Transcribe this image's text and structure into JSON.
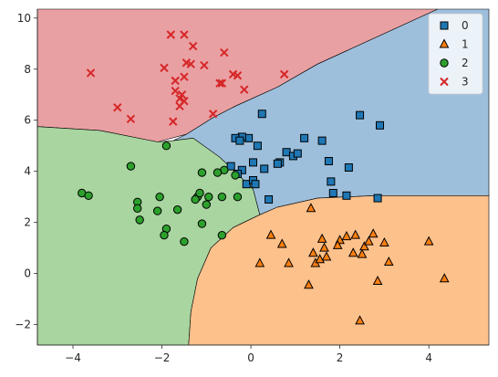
{
  "chart_data": {
    "type": "scatter",
    "subtype": "decision-regions",
    "xlim": [
      -4.8,
      5.35
    ],
    "ylim": [
      -2.8,
      10.35
    ],
    "xticks": [
      -4,
      -2,
      0,
      2,
      4
    ],
    "yticks": [
      -2,
      0,
      2,
      4,
      6,
      8,
      10
    ],
    "xtick_labels": [
      "−4",
      "−2",
      "0",
      "2",
      "4"
    ],
    "ytick_labels": [
      "−2",
      "0",
      "2",
      "4",
      "6",
      "8",
      "10"
    ],
    "grid": false,
    "legend_position": "top-right",
    "regions": [
      {
        "class": "3",
        "color": "#e9a0a3",
        "polygon": [
          [
            -4.8,
            10.35
          ],
          [
            4.2,
            10.35
          ],
          [
            1.5,
            8.2
          ],
          [
            0.6,
            7.3
          ],
          [
            -0.35,
            6.55
          ],
          [
            -0.85,
            6.1
          ],
          [
            -1.45,
            5.45
          ],
          [
            -2.1,
            5.15
          ],
          [
            -3.4,
            5.6
          ],
          [
            -4.8,
            5.75
          ]
        ]
      },
      {
        "class": "0",
        "color": "#9dbfdc",
        "polygon": [
          [
            4.2,
            10.35
          ],
          [
            5.35,
            10.35
          ],
          [
            5.35,
            3.05
          ],
          [
            2.8,
            3.05
          ],
          [
            1.5,
            2.95
          ],
          [
            0.6,
            2.6
          ],
          [
            0.2,
            2.3
          ],
          [
            0.05,
            3.3
          ],
          [
            -0.4,
            4.05
          ],
          [
            -0.7,
            4.55
          ],
          [
            -1.3,
            5.3
          ],
          [
            -1.75,
            5.2
          ],
          [
            -1.45,
            5.45
          ],
          [
            -0.85,
            6.1
          ],
          [
            -0.35,
            6.55
          ],
          [
            0.6,
            7.3
          ],
          [
            1.5,
            8.2
          ]
        ]
      },
      {
        "class": "2",
        "color": "#a9d5a0",
        "polygon": [
          [
            -4.8,
            5.75
          ],
          [
            -3.4,
            5.6
          ],
          [
            -2.1,
            5.15
          ],
          [
            -1.75,
            5.2
          ],
          [
            -1.3,
            5.3
          ],
          [
            -0.7,
            4.55
          ],
          [
            -0.4,
            4.05
          ],
          [
            0.05,
            3.3
          ],
          [
            0.2,
            2.3
          ],
          [
            -0.4,
            1.8
          ],
          [
            -0.9,
            1.0
          ],
          [
            -1.2,
            -0.2
          ],
          [
            -1.35,
            -1.5
          ],
          [
            -1.4,
            -2.8
          ],
          [
            -4.8,
            -2.8
          ]
        ]
      },
      {
        "class": "1",
        "color": "#fdc18c",
        "polygon": [
          [
            0.2,
            2.3
          ],
          [
            0.6,
            2.6
          ],
          [
            1.5,
            2.95
          ],
          [
            2.8,
            3.05
          ],
          [
            5.35,
            3.05
          ],
          [
            5.35,
            -2.8
          ],
          [
            -1.4,
            -2.8
          ],
          [
            -1.35,
            -1.5
          ],
          [
            -1.2,
            -0.2
          ],
          [
            -0.9,
            1.0
          ],
          [
            -0.4,
            1.8
          ]
        ]
      }
    ],
    "series": [
      {
        "name": "0",
        "marker": "square",
        "color": "#1f77b4",
        "points": [
          [
            -0.05,
            5.3
          ],
          [
            -0.2,
            5.35
          ],
          [
            -0.35,
            5.3
          ],
          [
            -0.25,
            5.2
          ],
          [
            0.25,
            6.25
          ],
          [
            0.15,
            5.0
          ],
          [
            0.8,
            4.75
          ],
          [
            0.95,
            4.6
          ],
          [
            1.05,
            4.7
          ],
          [
            1.2,
            5.3
          ],
          [
            1.6,
            5.2
          ],
          [
            1.75,
            4.4
          ],
          [
            2.45,
            6.2
          ],
          [
            2.9,
            5.8
          ],
          [
            2.2,
            4.15
          ],
          [
            0.05,
            4.35
          ],
          [
            -0.2,
            4.05
          ],
          [
            -0.45,
            4.2
          ],
          [
            -0.3,
            3.9
          ],
          [
            -0.1,
            3.5
          ],
          [
            0.05,
            3.65
          ],
          [
            0.1,
            3.5
          ],
          [
            0.65,
            4.35
          ],
          [
            0.4,
            2.9
          ],
          [
            1.8,
            3.6
          ],
          [
            1.85,
            3.15
          ],
          [
            2.15,
            3.05
          ],
          [
            2.85,
            2.95
          ],
          [
            0.6,
            4.3
          ],
          [
            0.3,
            4.1
          ]
        ],
        "sizes": []
      },
      {
        "name": "1",
        "marker": "triangle",
        "color": "#ff7f0e",
        "points": [
          [
            1.35,
            2.55
          ],
          [
            0.45,
            1.5
          ],
          [
            0.7,
            1.15
          ],
          [
            0.2,
            0.4
          ],
          [
            0.85,
            0.4
          ],
          [
            1.3,
            -0.45
          ],
          [
            1.4,
            0.8
          ],
          [
            1.45,
            0.4
          ],
          [
            1.6,
            1.35
          ],
          [
            1.65,
            1.0
          ],
          [
            1.7,
            0.65
          ],
          [
            2.0,
            1.3
          ],
          [
            2.15,
            1.45
          ],
          [
            2.35,
            1.5
          ],
          [
            2.3,
            0.8
          ],
          [
            2.5,
            0.75
          ],
          [
            2.55,
            1.05
          ],
          [
            2.65,
            1.25
          ],
          [
            2.75,
            1.55
          ],
          [
            2.85,
            -0.3
          ],
          [
            3.0,
            1.2
          ],
          [
            3.1,
            0.45
          ],
          [
            4.0,
            1.25
          ],
          [
            4.35,
            -0.2
          ],
          [
            2.45,
            -1.85
          ],
          [
            1.55,
            0.55
          ],
          [
            1.95,
            1.1
          ]
        ]
      },
      {
        "name": "2",
        "marker": "circle",
        "color": "#2ca02c",
        "points": [
          [
            -1.9,
            5.0
          ],
          [
            -2.7,
            4.2
          ],
          [
            -0.6,
            4.05
          ],
          [
            -0.75,
            3.95
          ],
          [
            -1.1,
            3.95
          ],
          [
            -0.35,
            3.85
          ],
          [
            -1.2,
            3.0
          ],
          [
            -1.25,
            2.9
          ],
          [
            -0.3,
            3.0
          ],
          [
            -0.65,
            3.0
          ],
          [
            -1.15,
            3.15
          ],
          [
            -1.0,
            2.7
          ],
          [
            -2.05,
            3.0
          ],
          [
            -2.55,
            2.8
          ],
          [
            -2.55,
            2.55
          ],
          [
            -2.1,
            2.45
          ],
          [
            -1.65,
            2.5
          ],
          [
            -3.8,
            3.15
          ],
          [
            -3.65,
            3.05
          ],
          [
            -2.5,
            2.1
          ],
          [
            -1.9,
            1.75
          ],
          [
            -1.95,
            1.5
          ],
          [
            -1.5,
            1.25
          ],
          [
            -1.1,
            1.95
          ],
          [
            -0.65,
            1.5
          ],
          [
            -0.95,
            3.0
          ]
        ]
      },
      {
        "name": "3",
        "marker": "x",
        "color": "#d62728",
        "points": [
          [
            -1.8,
            9.35
          ],
          [
            -1.5,
            9.35
          ],
          [
            -1.3,
            8.9
          ],
          [
            -0.6,
            8.65
          ],
          [
            -3.6,
            7.85
          ],
          [
            -1.95,
            8.05
          ],
          [
            -1.45,
            8.25
          ],
          [
            -1.35,
            8.2
          ],
          [
            -1.05,
            8.15
          ],
          [
            -0.4,
            7.8
          ],
          [
            -0.3,
            7.75
          ],
          [
            0.75,
            7.8
          ],
          [
            -1.7,
            7.55
          ],
          [
            -1.5,
            7.7
          ],
          [
            -0.7,
            7.45
          ],
          [
            -0.65,
            7.45
          ],
          [
            -1.7,
            7.15
          ],
          [
            -1.55,
            7.0
          ],
          [
            -1.6,
            6.85
          ],
          [
            -0.15,
            7.2
          ],
          [
            -1.5,
            6.75
          ],
          [
            -1.6,
            6.55
          ],
          [
            -3.0,
            6.5
          ],
          [
            -2.7,
            6.05
          ],
          [
            -1.75,
            5.95
          ],
          [
            -0.85,
            6.25
          ]
        ]
      }
    ]
  }
}
